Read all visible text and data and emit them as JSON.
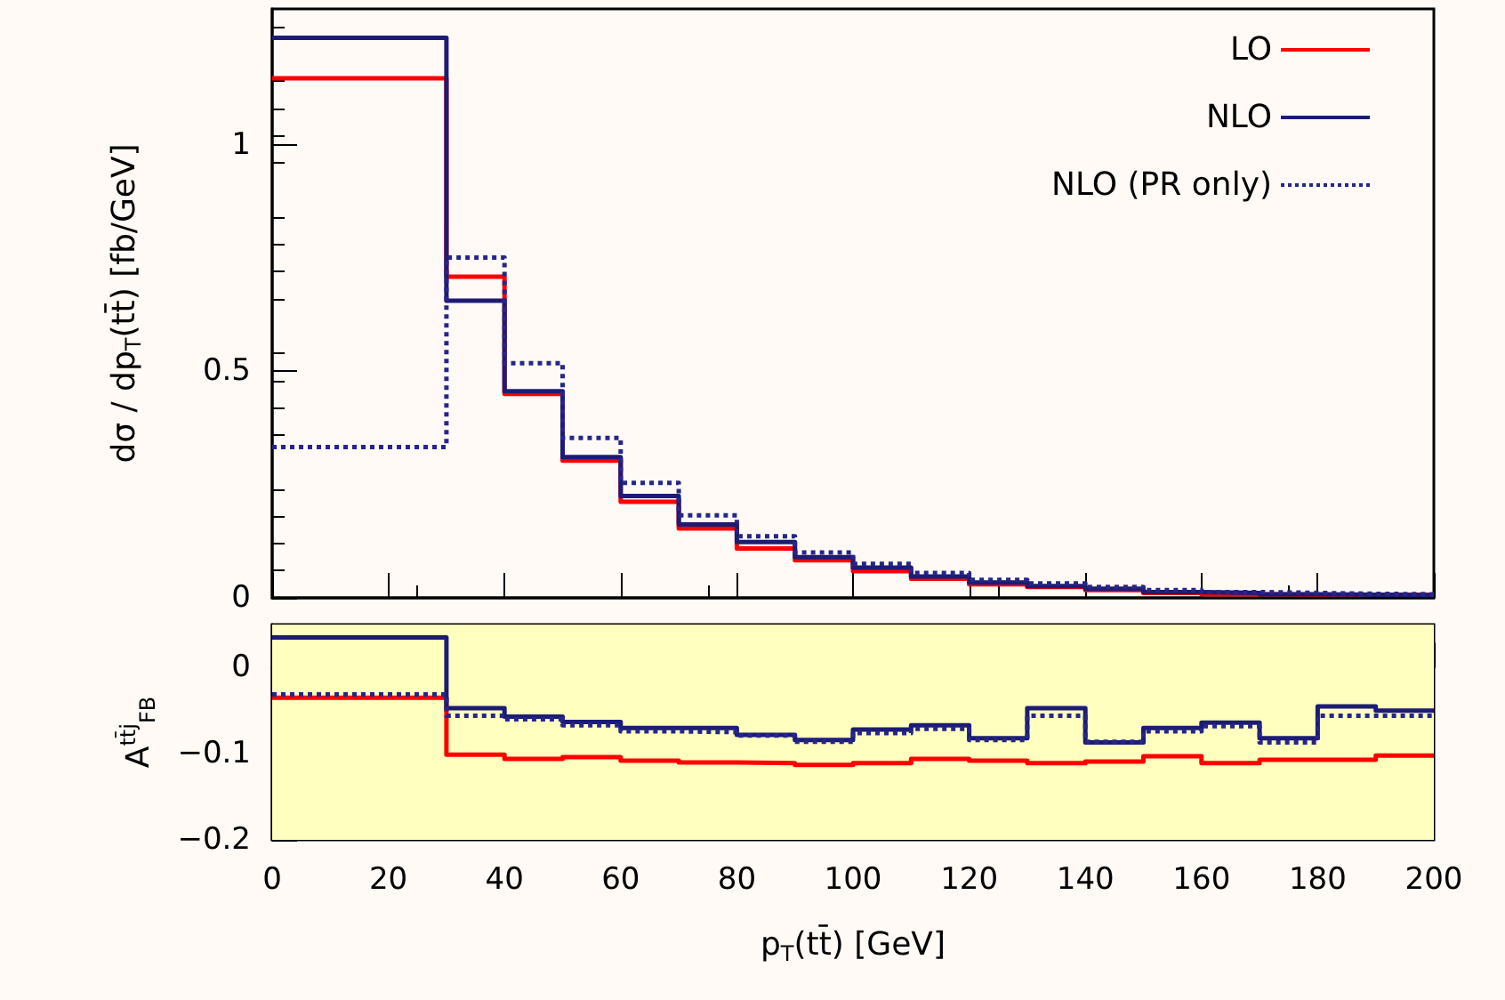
{
  "chart_data": [
    {
      "type": "histogram",
      "ylabel": "dσ / dp$_{T}$(tt̄) [fb/GeV]",
      "bins": [
        0,
        30,
        40,
        50,
        60,
        70,
        80,
        90,
        100,
        110,
        120,
        130,
        140,
        150,
        160,
        170,
        180,
        190,
        200
      ],
      "xlim": [
        0,
        200
      ],
      "xticks": [
        0,
        20,
        40,
        60,
        80,
        100,
        120,
        140,
        160,
        180,
        200
      ],
      "ylim": [
        0,
        1.3
      ],
      "yticks": [
        0,
        0.5,
        1
      ],
      "tick_labels": "y",
      "legend": "top right",
      "series": [
        {
          "name": "LO",
          "color": "#ff0000",
          "line_style": "solid",
          "values": [
            1.147,
            0.709,
            0.45,
            0.303,
            0.212,
            0.153,
            0.109,
            0.083,
            0.059,
            0.042,
            0.03,
            0.024,
            0.017,
            0.011,
            0.008,
            0.007,
            0.007,
            0.007
          ]
        },
        {
          "name": "NLO",
          "color": "#1c1c74",
          "line_style": "solid",
          "values": [
            1.236,
            0.656,
            0.456,
            0.311,
            0.225,
            0.162,
            0.123,
            0.09,
            0.067,
            0.047,
            0.034,
            0.026,
            0.02,
            0.013,
            0.011,
            0.008,
            0.007,
            0.006
          ]
        },
        {
          "name": "NLO (PR only)",
          "color": "#26268a",
          "line_style": "dotted",
          "values": [
            0.333,
            0.751,
            0.518,
            0.353,
            0.254,
            0.182,
            0.136,
            0.1,
            0.075,
            0.055,
            0.04,
            0.032,
            0.024,
            0.017,
            0.013,
            0.011,
            0.009,
            0.008
          ]
        }
      ]
    },
    {
      "type": "histogram",
      "xlabel": "p$_{T}$(tt̄) [GeV]",
      "ylabel": "A$^{tt̄j}$$_{FB}$",
      "bins": [
        0,
        30,
        40,
        50,
        60,
        70,
        80,
        90,
        100,
        110,
        120,
        130,
        140,
        150,
        160,
        170,
        180,
        190,
        200
      ],
      "xlim": [
        0,
        200
      ],
      "xticks": [
        0,
        20,
        40,
        60,
        80,
        100,
        120,
        140,
        160,
        180,
        200
      ],
      "ylim": [
        -0.2,
        0.05
      ],
      "yticks": [
        {
          "value": -0.2,
          "label": "−0.2"
        },
        {
          "value": -0.1,
          "label": "−0.1"
        },
        0
      ],
      "bands": [
        {
          "axis": "y",
          "from": -0.2,
          "to": 0.05,
          "color": "#ffffc0"
        }
      ],
      "series": [
        {
          "color": "#ff0000",
          "line_style": "solid",
          "values": [
            -0.035,
            -0.101,
            -0.106,
            -0.104,
            -0.108,
            -0.11,
            -0.111,
            -0.113,
            -0.111,
            -0.106,
            -0.108,
            -0.111,
            -0.109,
            -0.103,
            -0.111,
            -0.107,
            -0.107,
            -0.102
          ]
        },
        {
          "color": "#1c1c74",
          "line_style": "solid",
          "values": [
            0.035,
            -0.047,
            -0.057,
            -0.063,
            -0.07,
            -0.07,
            -0.078,
            -0.084,
            -0.072,
            -0.067,
            -0.082,
            -0.047,
            -0.087,
            -0.07,
            -0.064,
            -0.082,
            -0.045,
            -0.05
          ]
        },
        {
          "color": "#26268a",
          "line_style": "dotted",
          "values": [
            -0.031,
            -0.056,
            -0.06,
            -0.067,
            -0.074,
            -0.075,
            -0.079,
            -0.086,
            -0.076,
            -0.071,
            -0.084,
            -0.056,
            -0.086,
            -0.074,
            -0.068,
            -0.087,
            -0.056,
            -0.056
          ]
        }
      ]
    }
  ]
}
